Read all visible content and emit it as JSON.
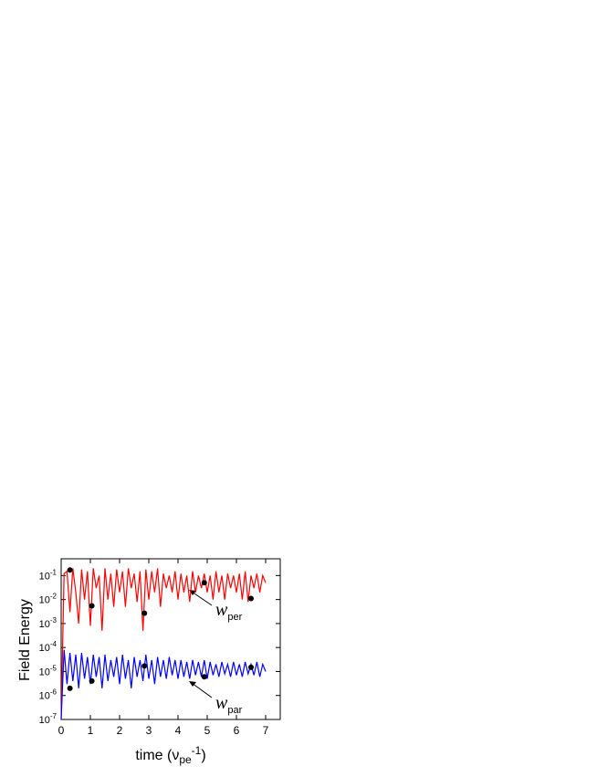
{
  "chart_data": {
    "type": "line",
    "ylog": true,
    "xlabel": "time (νpe-1)",
    "ylabel": "Field Energy",
    "xlim": [
      0,
      7.5
    ],
    "ylim": [
      1e-07,
      0.5
    ],
    "xticks": [
      0,
      1,
      2,
      3,
      4,
      5,
      6,
      7
    ],
    "yticks": [
      {
        "value": 1e-07,
        "label": "10-7"
      },
      {
        "value": 1e-06,
        "label": "10-6"
      },
      {
        "value": 1e-05,
        "label": "10-5"
      },
      {
        "value": 0.0001,
        "label": "10-4"
      },
      {
        "value": 0.001,
        "label": "10-3"
      },
      {
        "value": 0.01,
        "label": "10-2"
      },
      {
        "value": 0.1,
        "label": "10-1"
      }
    ],
    "annotations": [
      "wper",
      "wpar"
    ],
    "x": [
      0,
      0.1,
      0.2,
      0.3,
      0.4,
      0.5,
      0.6,
      0.7,
      0.8,
      0.9,
      1.0,
      1.1,
      1.2,
      1.3,
      1.4,
      1.5,
      1.6,
      1.7,
      1.8,
      1.9,
      2.0,
      2.1,
      2.2,
      2.3,
      2.4,
      2.5,
      2.6,
      2.7,
      2.8,
      2.9,
      3.0,
      3.1,
      3.2,
      3.3,
      3.4,
      3.5,
      3.6,
      3.7,
      3.8,
      3.9,
      4.0,
      4.1,
      4.2,
      4.3,
      4.4,
      4.5,
      4.6,
      4.7,
      4.8,
      4.9,
      5.0,
      5.1,
      5.2,
      5.3,
      5.4,
      5.5,
      5.6,
      5.7,
      5.8,
      5.9,
      6.0,
      6.1,
      6.2,
      6.3,
      6.4,
      6.5,
      6.6,
      6.7,
      6.8,
      6.9,
      7.0
    ],
    "series": [
      {
        "color": "#ff0000",
        "values": [
          1e-07,
          0.12,
          0.15,
          0.003,
          0.2,
          0.02,
          0.001,
          0.18,
          0.01,
          0.15,
          0.0008,
          0.2,
          0.03,
          0.1,
          0.0005,
          0.2,
          0.01,
          0.12,
          0.005,
          0.18,
          0.02,
          0.15,
          0.005,
          0.2,
          0.03,
          0.12,
          0.008,
          0.15,
          0.0005,
          0.18,
          0.01,
          0.15,
          0.02,
          0.2,
          0.005,
          0.12,
          0.03,
          0.1,
          0.02,
          0.15,
          0.01,
          0.12,
          0.02,
          0.1,
          0.008,
          0.15,
          0.02,
          0.1,
          0.03,
          0.12,
          0.02,
          0.1,
          0.01,
          0.15,
          0.02,
          0.1,
          0.01,
          0.12,
          0.03,
          0.1,
          0.02,
          0.12,
          0.01,
          0.15,
          0.008,
          0.1,
          0.03,
          0.12,
          0.02,
          0.1,
          0.05
        ]
      },
      {
        "color": "#0000ff",
        "values": [
          1e-07,
          8e-05,
          3e-06,
          6e-05,
          4e-06,
          5e-05,
          2e-06,
          6e-05,
          5e-06,
          4e-05,
          3e-06,
          5e-05,
          6e-06,
          4e-05,
          2e-06,
          5e-05,
          4e-06,
          3e-05,
          6e-06,
          4e-05,
          3e-06,
          5e-05,
          5e-06,
          3e-05,
          2e-06,
          4e-05,
          6e-06,
          3e-05,
          4e-06,
          5e-05,
          5e-06,
          3e-05,
          3e-06,
          4e-05,
          6e-06,
          3e-05,
          5e-06,
          4e-05,
          7e-06,
          3e-05,
          5e-06,
          3e-05,
          6e-06,
          2.5e-05,
          5e-06,
          3e-05,
          7e-06,
          2.5e-05,
          6e-06,
          3e-05,
          5e-06,
          2.5e-05,
          7e-06,
          2e-05,
          6e-06,
          2.5e-05,
          8e-06,
          2e-05,
          6e-06,
          2.5e-05,
          7e-06,
          2e-05,
          6e-06,
          2.5e-05,
          8e-06,
          2e-05,
          7e-06,
          2.5e-05,
          6e-06,
          2e-05,
          1e-05
        ]
      }
    ],
    "dots": {
      "color": "#000000",
      "x": [
        0.3,
        1.05,
        2.85,
        4.9,
        6.5,
        0.3,
        1.05,
        2.85,
        4.9,
        6.5
      ],
      "values": [
        0.17,
        0.0055,
        0.0027,
        0.05,
        0.011,
        2e-06,
        4e-06,
        1.7e-05,
        6e-06,
        1.5e-05
      ]
    }
  }
}
